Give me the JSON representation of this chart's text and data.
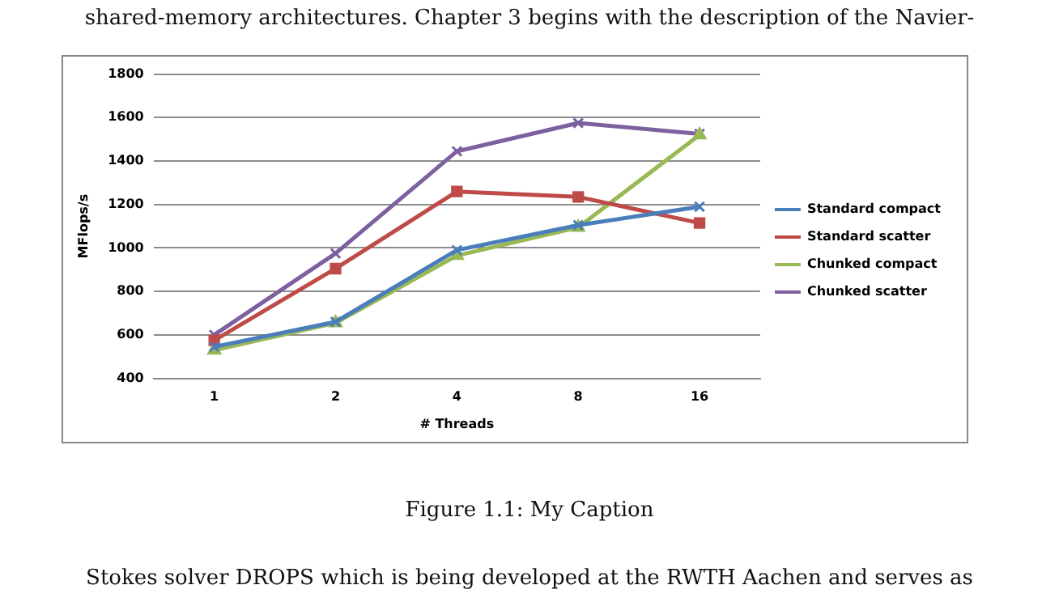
{
  "chart_data": {
    "type": "line",
    "xlabel": "# Threads",
    "ylabel": "MFlops/s",
    "categories": [
      "1",
      "2",
      "4",
      "8",
      "16"
    ],
    "series": [
      {
        "name": "Standard compact",
        "color": "#4a7ebb",
        "marker": "cross",
        "values": [
          545,
          660,
          990,
          1105,
          1190
        ]
      },
      {
        "name": "Standard scatter",
        "color": "#be4b48",
        "marker": "square",
        "values": [
          575,
          905,
          1260,
          1235,
          1115
        ]
      },
      {
        "name": "Chunked compact",
        "color": "#98b954",
        "marker": "triangle",
        "values": [
          530,
          655,
          965,
          1095,
          1520
        ]
      },
      {
        "name": "Chunked scatter",
        "color": "#7d60a0",
        "marker": "cross",
        "values": [
          600,
          975,
          1445,
          1575,
          1525
        ]
      }
    ],
    "ylim": [
      400,
      1800
    ],
    "yticks": [
      400,
      600,
      800,
      1000,
      1200,
      1400,
      1600,
      1800
    ],
    "grid": "y",
    "legend": "right",
    "annotations": [
      "shared-memory architectures.  Chapter 3 begins with the description of the Navier-",
      "Figure 1.1: My Caption",
      "Stokes solver DROPS which is being developed at the RWTH Aachen and serves as"
    ]
  }
}
